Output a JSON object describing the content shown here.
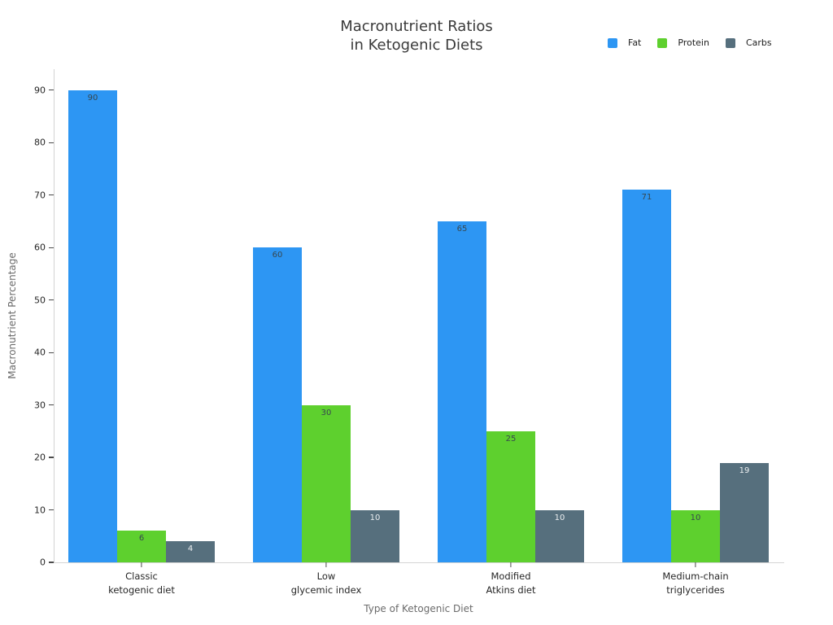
{
  "title": {
    "line1": "Macronutrient Ratios",
    "line2": "in Ketogenic Diets"
  },
  "chart_data": {
    "type": "bar",
    "title": "Macronutrient Ratios in Ketogenic Diets",
    "xlabel": "Type of Ketogenic Diet",
    "ylabel": "Macronutrient Percentage",
    "categories": [
      [
        "Classic",
        "ketogenic diet"
      ],
      [
        "Low",
        "glycemic index"
      ],
      [
        "Modified",
        "Atkins diet"
      ],
      [
        "Medium-chain",
        "triglycerides"
      ]
    ],
    "series": [
      {
        "name": "Fat",
        "color": "#2d96f3",
        "label_color": "#37474f",
        "values": [
          90,
          60,
          65,
          71
        ]
      },
      {
        "name": "Protein",
        "color": "#5ed02e",
        "label_color": "#37474f",
        "values": [
          6,
          30,
          25,
          10
        ]
      },
      {
        "name": "Carbs",
        "color": "#566f7d",
        "label_color": "#eceff1",
        "values": [
          4,
          10,
          10,
          19
        ]
      }
    ],
    "yticks": [
      0,
      10,
      20,
      30,
      40,
      50,
      60,
      70,
      80,
      90
    ],
    "ylim": [
      0,
      94
    ],
    "grid": false,
    "legend_position": "top-right",
    "bar_value_labels": "inside-top"
  }
}
